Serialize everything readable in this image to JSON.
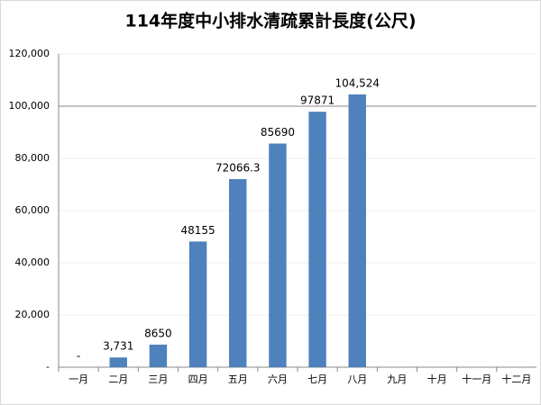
{
  "chart_data": {
    "type": "bar",
    "title": "114年度中小排水清疏累計長度(公尺)",
    "categories": [
      "一月",
      "二月",
      "三月",
      "四月",
      "五月",
      "六月",
      "七月",
      "八月",
      "九月",
      "十月",
      "十一月",
      "十二月"
    ],
    "values": [
      0,
      3731,
      8650,
      48155,
      72066.3,
      85690,
      97871,
      104524,
      null,
      null,
      null,
      null
    ],
    "value_labels": [
      "-",
      "3,731",
      "8650",
      "48155",
      "72066.3",
      "85690",
      "97871",
      "104,524",
      null,
      null,
      null,
      null
    ],
    "color": "#4f81bd",
    "ylim": [
      0,
      120000
    ],
    "yticks": [
      {
        "value": 0,
        "label": "-"
      },
      {
        "value": 20000,
        "label": "20,000"
      },
      {
        "value": 40000,
        "label": "40,000"
      },
      {
        "value": 60000,
        "label": "60,000"
      },
      {
        "value": 80000,
        "label": "80,000"
      },
      {
        "value": 100000,
        "label": "100,000"
      },
      {
        "value": 120000,
        "label": "120,000"
      }
    ],
    "grid": true
  }
}
